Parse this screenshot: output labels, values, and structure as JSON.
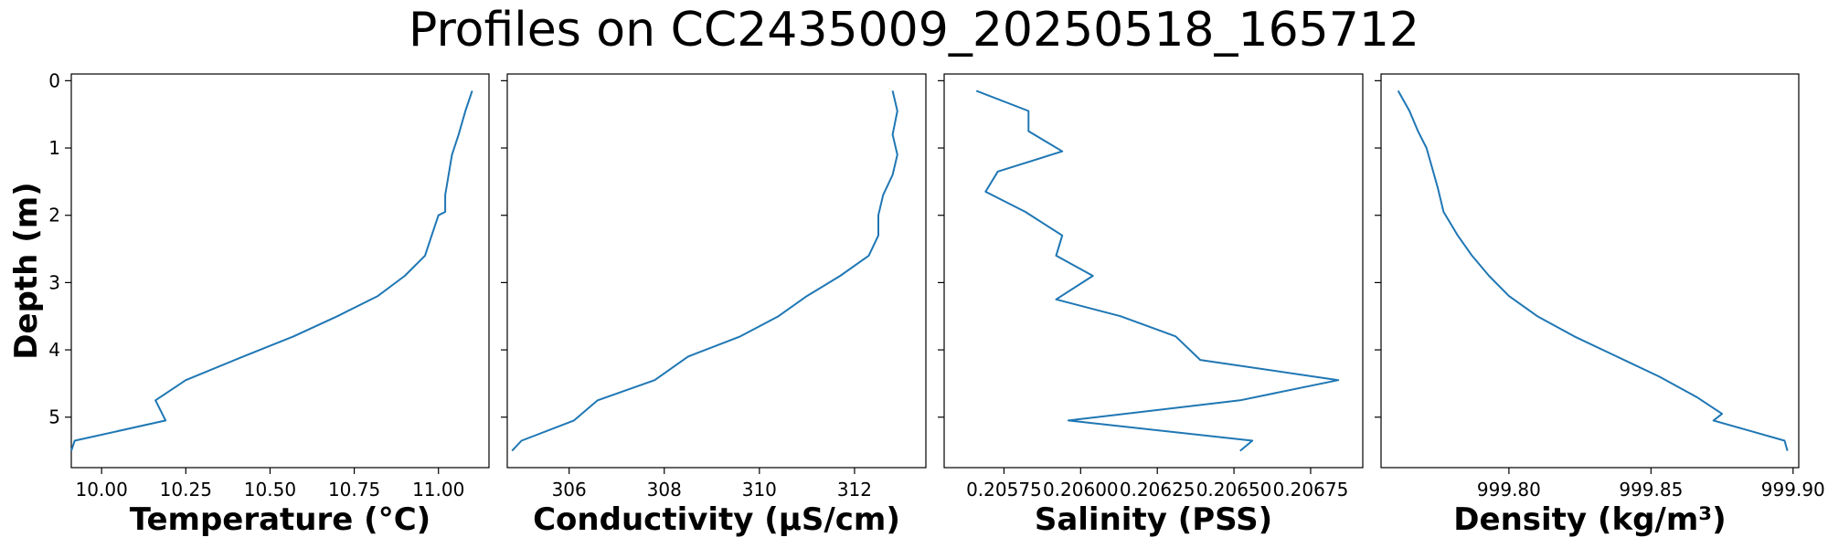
{
  "figure": {
    "title": "Profiles on CC2435009_20250518_165712",
    "series_color": "#1f77b4"
  },
  "chart_data": [
    {
      "type": "line",
      "xlabel": "Temperature (°C)",
      "ylabel": "Depth (m)",
      "xlim": [
        9.91,
        11.15
      ],
      "ylim": [
        5.75,
        -0.1
      ],
      "xticks": [
        10.0,
        10.25,
        10.5,
        10.75,
        11.0
      ],
      "xtick_labels": [
        "10.00",
        "10.25",
        "10.50",
        "10.75",
        "11.00"
      ],
      "yticks": [
        0,
        1,
        2,
        3,
        4,
        5
      ],
      "ytick_labels": [
        "0",
        "1",
        "2",
        "3",
        "4",
        "5"
      ],
      "x": [
        11.1,
        11.08,
        11.06,
        11.04,
        11.03,
        11.02,
        11.02,
        11.0,
        10.98,
        10.96,
        10.9,
        10.82,
        10.7,
        10.57,
        10.42,
        10.25,
        10.16,
        10.19,
        9.92,
        9.91
      ],
      "y": [
        0.15,
        0.45,
        0.8,
        1.1,
        1.4,
        1.7,
        1.95,
        2.0,
        2.3,
        2.6,
        2.9,
        3.2,
        3.5,
        3.8,
        4.1,
        4.45,
        4.75,
        5.05,
        5.35,
        5.5
      ]
    },
    {
      "type": "line",
      "xlabel": "Conductivity (μS/cm)",
      "xlim": [
        304.7,
        313.5
      ],
      "ylim": [
        5.75,
        -0.1
      ],
      "xticks": [
        306,
        308,
        310,
        312
      ],
      "xtick_labels": [
        "306",
        "308",
        "310",
        "312"
      ],
      "yticks": [
        0,
        1,
        2,
        3,
        4,
        5
      ],
      "x": [
        312.8,
        312.9,
        312.8,
        312.9,
        312.8,
        312.6,
        312.5,
        312.5,
        312.3,
        311.7,
        311.0,
        310.4,
        309.6,
        308.5,
        307.8,
        306.6,
        306.1,
        305.0,
        304.8
      ],
      "y": [
        0.15,
        0.45,
        0.8,
        1.1,
        1.4,
        1.7,
        2.0,
        2.3,
        2.6,
        2.9,
        3.2,
        3.5,
        3.8,
        4.1,
        4.45,
        4.75,
        5.05,
        5.35,
        5.5
      ]
    },
    {
      "type": "line",
      "xlabel": "Salinity (PSS)",
      "xlim": [
        0.205555,
        0.20692
      ],
      "ylim": [
        5.75,
        -0.1
      ],
      "xticks": [
        0.20575,
        0.206,
        0.20625,
        0.2065,
        0.20675
      ],
      "xtick_labels": [
        "0.20575",
        "0.20600",
        "0.20625",
        "0.20650",
        "0.20675"
      ],
      "yticks": [
        0,
        1,
        2,
        3,
        4,
        5
      ],
      "x": [
        0.20566,
        0.20583,
        0.20583,
        0.20594,
        0.20573,
        0.20569,
        0.20582,
        0.20594,
        0.20592,
        0.20604,
        0.20592,
        0.20613,
        0.20631,
        0.20639,
        0.20684,
        0.20652,
        0.20596,
        0.20656,
        0.20652
      ],
      "y": [
        0.15,
        0.45,
        0.75,
        1.05,
        1.35,
        1.65,
        1.95,
        2.3,
        2.6,
        2.9,
        3.25,
        3.5,
        3.8,
        4.15,
        4.45,
        4.75,
        5.05,
        5.35,
        5.5
      ]
    },
    {
      "type": "line",
      "xlabel": "Density (kg/m³)",
      "xlim": [
        999.755,
        999.902
      ],
      "ylim": [
        5.75,
        -0.1
      ],
      "xticks": [
        999.8,
        999.85,
        999.9
      ],
      "xtick_labels": [
        "999.80",
        "999.85",
        "999.90"
      ],
      "yticks": [
        0,
        1,
        2,
        3,
        4,
        5
      ],
      "x": [
        999.761,
        999.765,
        999.768,
        999.771,
        999.773,
        999.775,
        999.777,
        999.782,
        999.787,
        999.793,
        999.8,
        999.81,
        999.823,
        999.838,
        999.853,
        999.866,
        999.875,
        999.872,
        999.897,
        999.898
      ],
      "y": [
        0.15,
        0.45,
        0.75,
        1.0,
        1.3,
        1.6,
        1.95,
        2.3,
        2.6,
        2.9,
        3.2,
        3.5,
        3.8,
        4.1,
        4.4,
        4.7,
        4.95,
        5.05,
        5.35,
        5.5
      ]
    }
  ]
}
